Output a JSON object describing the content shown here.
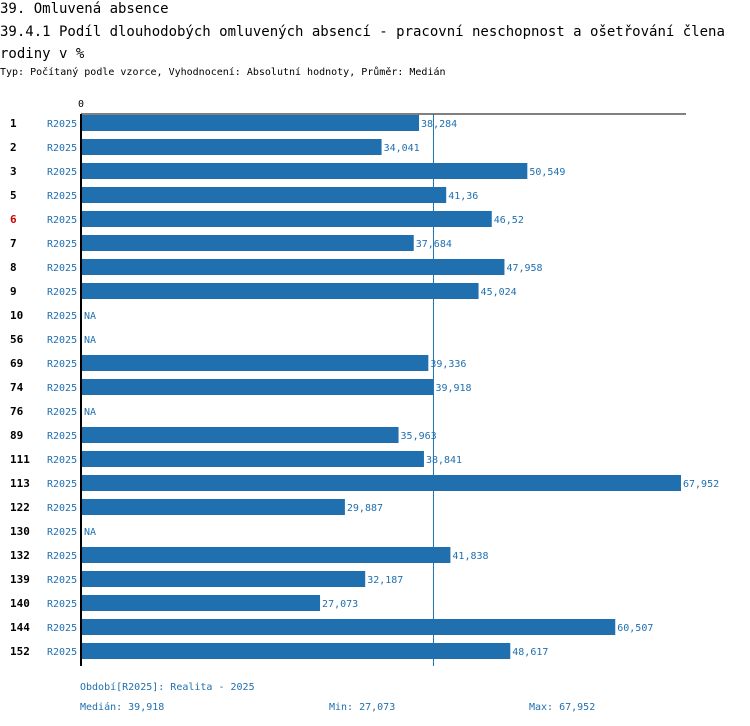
{
  "header": {
    "section_title": "39. Omluvená absence",
    "chart_title": "39.4.1 Podíl dlouhodobých omluvených absencí - pracovní neschopnost a ošetřování člena rodiny v %",
    "subtitle": "Typ: Počítaný podle vzorce, Vyhodnocení: Absolutní hodnoty, Průměr: Medián"
  },
  "colors": {
    "bar": "#2070b0",
    "series_label": "#2070b0",
    "highlight_id": "#cc0000",
    "axis": "#000000"
  },
  "chart_data": {
    "type": "bar",
    "orientation": "horizontal",
    "axis_zero_label": "0",
    "x_min": 0,
    "x_max": 67.952,
    "median": 39.918,
    "highlighted_id": "6",
    "rows": [
      {
        "id": "1",
        "series": "R2025",
        "value": 38.284,
        "label": "38,284"
      },
      {
        "id": "2",
        "series": "R2025",
        "value": 34.041,
        "label": "34,041"
      },
      {
        "id": "3",
        "series": "R2025",
        "value": 50.549,
        "label": "50,549"
      },
      {
        "id": "5",
        "series": "R2025",
        "value": 41.36,
        "label": "41,36"
      },
      {
        "id": "6",
        "series": "R2025",
        "value": 46.52,
        "label": "46,52"
      },
      {
        "id": "7",
        "series": "R2025",
        "value": 37.684,
        "label": "37,684"
      },
      {
        "id": "8",
        "series": "R2025",
        "value": 47.958,
        "label": "47,958"
      },
      {
        "id": "9",
        "series": "R2025",
        "value": 45.024,
        "label": "45,024"
      },
      {
        "id": "10",
        "series": "R2025",
        "value": null,
        "label": "NA"
      },
      {
        "id": "56",
        "series": "R2025",
        "value": null,
        "label": "NA"
      },
      {
        "id": "69",
        "series": "R2025",
        "value": 39.336,
        "label": "39,336"
      },
      {
        "id": "74",
        "series": "R2025",
        "value": 39.918,
        "label": "39,918"
      },
      {
        "id": "76",
        "series": "R2025",
        "value": null,
        "label": "NA"
      },
      {
        "id": "89",
        "series": "R2025",
        "value": 35.963,
        "label": "35,963"
      },
      {
        "id": "111",
        "series": "R2025",
        "value": 38.841,
        "label": "38,841"
      },
      {
        "id": "113",
        "series": "R2025",
        "value": 67.952,
        "label": "67,952"
      },
      {
        "id": "122",
        "series": "R2025",
        "value": 29.887,
        "label": "29,887"
      },
      {
        "id": "130",
        "series": "R2025",
        "value": null,
        "label": "NA"
      },
      {
        "id": "132",
        "series": "R2025",
        "value": 41.838,
        "label": "41,838"
      },
      {
        "id": "139",
        "series": "R2025",
        "value": 32.187,
        "label": "32,187"
      },
      {
        "id": "140",
        "series": "R2025",
        "value": 27.073,
        "label": "27,073"
      },
      {
        "id": "144",
        "series": "R2025",
        "value": 60.507,
        "label": "60,507"
      },
      {
        "id": "152",
        "series": "R2025",
        "value": 48.617,
        "label": "48,617"
      }
    ]
  },
  "footer": {
    "period": "Období[R2025]: Realita - 2025",
    "median": "Medián: 39,918",
    "min": "Min: 27,073",
    "max": "Max: 67,952"
  }
}
